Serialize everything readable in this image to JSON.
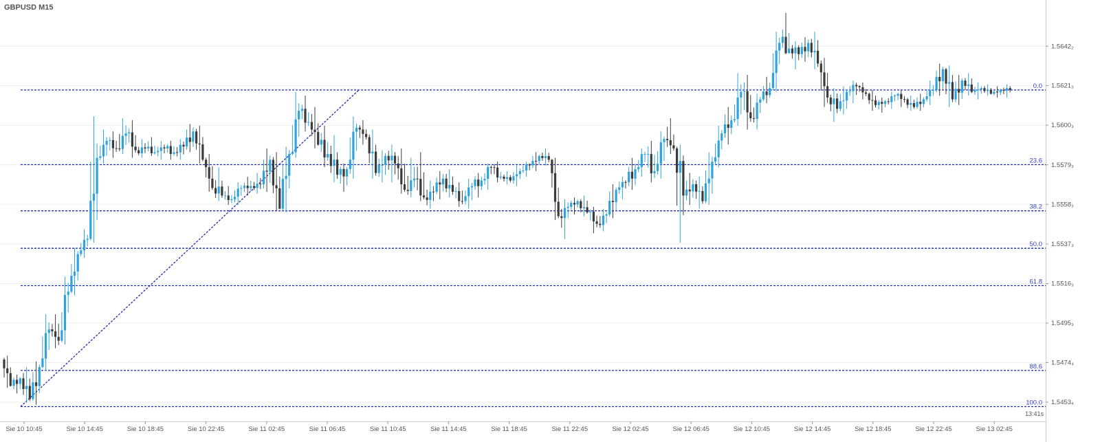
{
  "header": {
    "symbol_title": "GBPUSD M15"
  },
  "colors": {
    "bull": "#2ea3df",
    "bear": "#3b3b3b",
    "fib_line": "#1f2bb0",
    "fib_label": "#3344cc",
    "grid": "#eeeeee",
    "axis_text": "#555555"
  },
  "chart_data": {
    "type": "candlestick",
    "symbol": "GBPUSD",
    "timeframe": "M15",
    "y_axis": {
      "position": "right",
      "ylim": [
        1.5445,
        1.5662
      ],
      "ticks": [
        {
          "value": 1.56422,
          "label": "1.5642₂"
        },
        {
          "value": 1.56213,
          "label": "1.5621₃"
        },
        {
          "value": 1.56003,
          "label": "1.5600₃"
        },
        {
          "value": 1.55793,
          "label": "1.5579₃"
        },
        {
          "value": 1.55583,
          "label": "1.5558₃"
        },
        {
          "value": 1.55373,
          "label": "1.5537₃"
        },
        {
          "value": 1.55163,
          "label": "1.5516₃"
        },
        {
          "value": 1.54953,
          "label": "1.5495₃"
        },
        {
          "value": 1.54744,
          "label": "1.5474₄"
        },
        {
          "value": 1.54534,
          "label": "1.5453₄"
        }
      ]
    },
    "x_axis": {
      "labels": [
        "Sie 10 10:45",
        "Sie 10 14:45",
        "Sie 10 18:45",
        "Sie 10 22:45",
        "Sie 11 02:45",
        "Sie 11 06:45",
        "Sie 11 10:45",
        "Sie 11 14:45",
        "Sie 11 18:45",
        "Sie 11 22:45",
        "Sie 12 02:45",
        "Sie 12 06:45",
        "Sie 12 10:45",
        "Sie 12 14:45",
        "Sie 12 18:45",
        "Sie 12 22:45",
        "Sie 13 02:45"
      ],
      "bars_per_label": 16
    },
    "grid": true,
    "server_time": "13:41s",
    "fibonacci": {
      "low": 1.5451,
      "high": 1.5619,
      "levels": [
        {
          "label": "0.0",
          "value": 1.5619
        },
        {
          "label": "23.6",
          "value": 1.55794
        },
        {
          "label": "38.2",
          "value": 1.55549
        },
        {
          "label": "50.0",
          "value": 1.5535
        },
        {
          "label": "61.8",
          "value": 1.55152
        },
        {
          "label": "88.6",
          "value": 1.54702
        },
        {
          "label": "100.0",
          "value": 1.5451
        }
      ]
    },
    "anchors": [
      [
        1.5476,
        1.5478,
        1.5461,
        1.5462
      ],
      [
        1.5462,
        1.5468,
        1.5458,
        1.5466
      ],
      [
        1.5466,
        1.5472,
        1.5453,
        1.5455
      ],
      [
        1.5455,
        1.5475,
        1.5452,
        1.5472
      ],
      [
        1.5472,
        1.55,
        1.547,
        1.5492
      ],
      [
        1.5492,
        1.55,
        1.5482,
        1.5486
      ],
      [
        1.5486,
        1.552,
        1.5484,
        1.5512
      ],
      [
        1.5512,
        1.5535,
        1.551,
        1.5532
      ],
      [
        1.5532,
        1.5545,
        1.553,
        1.554
      ],
      [
        1.554,
        1.5605,
        1.5538,
        1.5583
      ],
      [
        1.5583,
        1.5598,
        1.558,
        1.5592
      ],
      [
        1.5592,
        1.5597,
        1.5583,
        1.5588
      ],
      [
        1.5588,
        1.5604,
        1.5585,
        1.5596
      ],
      [
        1.5596,
        1.5603,
        1.5583,
        1.5587
      ],
      [
        1.5587,
        1.5593,
        1.5583,
        1.5588
      ],
      [
        1.5588,
        1.5594,
        1.5584,
        1.5586
      ],
      [
        1.5586,
        1.5592,
        1.5582,
        1.5588
      ],
      [
        1.5588,
        1.5592,
        1.5582,
        1.5586
      ],
      [
        1.5586,
        1.5593,
        1.5582,
        1.5589
      ],
      [
        1.5589,
        1.5601,
        1.5586,
        1.5597
      ],
      [
        1.5597,
        1.56,
        1.558,
        1.5582
      ],
      [
        1.5582,
        1.5585,
        1.5565,
        1.5567
      ],
      [
        1.5567,
        1.5578,
        1.556,
        1.5563
      ],
      [
        1.5563,
        1.5568,
        1.5558,
        1.5561
      ],
      [
        1.5561,
        1.557,
        1.5558,
        1.5567
      ],
      [
        1.5567,
        1.5573,
        1.5563,
        1.5568
      ],
      [
        1.5568,
        1.5575,
        1.5564,
        1.5569
      ],
      [
        1.5569,
        1.5588,
        1.5565,
        1.5582
      ],
      [
        1.5582,
        1.5586,
        1.5555,
        1.5556
      ],
      [
        1.5556,
        1.5589,
        1.5554,
        1.5585
      ],
      [
        1.5585,
        1.5618,
        1.5583,
        1.5608
      ],
      [
        1.5608,
        1.5616,
        1.5597,
        1.5602
      ],
      [
        1.5602,
        1.561,
        1.5588,
        1.559
      ],
      [
        1.559,
        1.56,
        1.5578,
        1.5585
      ],
      [
        1.5585,
        1.5595,
        1.557,
        1.5574
      ],
      [
        1.5574,
        1.558,
        1.5565,
        1.5577
      ],
      [
        1.5577,
        1.5605,
        1.5572,
        1.5599
      ],
      [
        1.5599,
        1.5603,
        1.559,
        1.5594
      ],
      [
        1.5594,
        1.5598,
        1.5572,
        1.5575
      ],
      [
        1.5575,
        1.5587,
        1.557,
        1.5584
      ],
      [
        1.5584,
        1.559,
        1.557,
        1.558
      ],
      [
        1.558,
        1.5588,
        1.5564,
        1.5566
      ],
      [
        1.5566,
        1.5583,
        1.5562,
        1.5572
      ],
      [
        1.5572,
        1.5586,
        1.556,
        1.5562
      ],
      [
        1.5562,
        1.5571,
        1.5556,
        1.5565
      ],
      [
        1.5565,
        1.5576,
        1.5561,
        1.5572
      ],
      [
        1.5572,
        1.5577,
        1.5562,
        1.5565
      ],
      [
        1.5565,
        1.557,
        1.5557,
        1.556
      ],
      [
        1.556,
        1.5572,
        1.5556,
        1.5568
      ],
      [
        1.5568,
        1.5575,
        1.5562,
        1.5571
      ],
      [
        1.5571,
        1.558,
        1.5566,
        1.5578
      ],
      [
        1.5578,
        1.5581,
        1.557,
        1.5573
      ],
      [
        1.5573,
        1.5576,
        1.5569,
        1.5571
      ],
      [
        1.5571,
        1.5579,
        1.5568,
        1.5576
      ],
      [
        1.5576,
        1.5581,
        1.5573,
        1.5579
      ],
      [
        1.5579,
        1.5586,
        1.5576,
        1.5584
      ],
      [
        1.5584,
        1.5588,
        1.5579,
        1.5582
      ],
      [
        1.5582,
        1.5583,
        1.555,
        1.5552
      ],
      [
        1.5552,
        1.5561,
        1.554,
        1.5557
      ],
      [
        1.5557,
        1.5562,
        1.5553,
        1.556
      ],
      [
        1.556,
        1.5563,
        1.5552,
        1.5554
      ],
      [
        1.5554,
        1.5557,
        1.5543,
        1.5548
      ],
      [
        1.5548,
        1.5556,
        1.5544,
        1.5553
      ],
      [
        1.5553,
        1.5569,
        1.5551,
        1.5566
      ],
      [
        1.5566,
        1.5573,
        1.5561,
        1.557
      ],
      [
        1.557,
        1.5583,
        1.5566,
        1.5577
      ],
      [
        1.5577,
        1.5588,
        1.5573,
        1.5585
      ],
      [
        1.5585,
        1.5592,
        1.557,
        1.5576
      ],
      [
        1.5576,
        1.5597,
        1.5572,
        1.5593
      ],
      [
        1.5593,
        1.5604,
        1.5585,
        1.5588
      ],
      [
        1.5588,
        1.559,
        1.5538,
        1.5563
      ],
      [
        1.5563,
        1.5575,
        1.5558,
        1.5569
      ],
      [
        1.5569,
        1.5573,
        1.5556,
        1.556
      ],
      [
        1.556,
        1.5586,
        1.5558,
        1.5581
      ],
      [
        1.5581,
        1.56,
        1.5578,
        1.5596
      ],
      [
        1.5596,
        1.561,
        1.559,
        1.5603
      ],
      [
        1.5603,
        1.5628,
        1.56,
        1.5618
      ],
      [
        1.5618,
        1.5627,
        1.5598,
        1.5604
      ],
      [
        1.5604,
        1.5617,
        1.5598,
        1.5614
      ],
      [
        1.5614,
        1.5626,
        1.5612,
        1.562
      ],
      [
        1.562,
        1.565,
        1.5618,
        1.5644
      ],
      [
        1.5644,
        1.566,
        1.5638,
        1.5641
      ],
      [
        1.5641,
        1.5645,
        1.563,
        1.5638
      ],
      [
        1.5638,
        1.5647,
        1.5634,
        1.5644
      ],
      [
        1.5644,
        1.565,
        1.563,
        1.5633
      ],
      [
        1.5633,
        1.5636,
        1.561,
        1.5615
      ],
      [
        1.5615,
        1.562,
        1.5602,
        1.5609
      ],
      [
        1.5609,
        1.5621,
        1.5606,
        1.5618
      ],
      [
        1.5618,
        1.5624,
        1.5612,
        1.5621
      ],
      [
        1.5621,
        1.5623,
        1.5614,
        1.5617
      ],
      [
        1.5617,
        1.5619,
        1.5608,
        1.5611
      ],
      [
        1.5611,
        1.5615,
        1.5607,
        1.5613
      ],
      [
        1.5613,
        1.5618,
        1.5609,
        1.5616
      ],
      [
        1.5616,
        1.5619,
        1.561,
        1.5614
      ],
      [
        1.5614,
        1.5616,
        1.5608,
        1.561
      ],
      [
        1.561,
        1.5617,
        1.5608,
        1.5614
      ],
      [
        1.5614,
        1.5624,
        1.5611,
        1.5619
      ],
      [
        1.5619,
        1.5633,
        1.5616,
        1.563
      ],
      [
        1.563,
        1.5632,
        1.561,
        1.5614
      ],
      [
        1.5614,
        1.5627,
        1.5611,
        1.5624
      ],
      [
        1.5624,
        1.5628,
        1.5616,
        1.5618
      ],
      [
        1.5618,
        1.5623,
        1.5614,
        1.562
      ],
      [
        1.562,
        1.5622,
        1.5616,
        1.5617
      ],
      [
        1.5617,
        1.5621,
        1.5615,
        1.5619
      ],
      [
        1.5619,
        1.5622,
        1.5615,
        1.5619
      ]
    ]
  }
}
